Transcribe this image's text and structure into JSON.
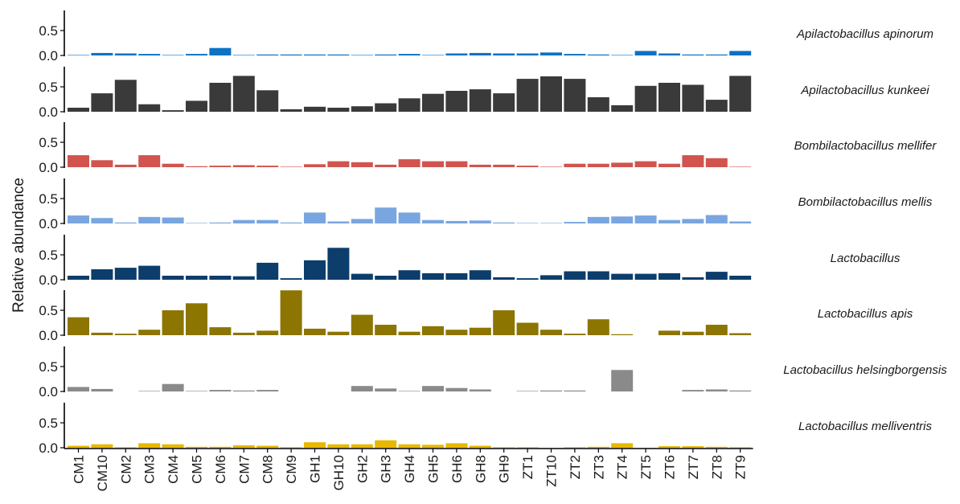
{
  "chart_data": {
    "type": "bar",
    "ylabel": "Relative abundance",
    "xlabel": "",
    "ylim": [
      0,
      0.95
    ],
    "yticks": [
      0.0,
      0.5
    ],
    "ytick_labels": [
      "0.0",
      "0.5"
    ],
    "categories": [
      "CM1",
      "CM10",
      "CM2",
      "CM3",
      "CM4",
      "CM5",
      "CM6",
      "CM7",
      "CM8",
      "CM9",
      "GH1",
      "GH10",
      "GH2",
      "GH3",
      "GH4",
      "GH5",
      "GH6",
      "GH8",
      "GH9",
      "ZT1",
      "ZT10",
      "ZT2",
      "ZT3",
      "ZT4",
      "ZT5",
      "ZT6",
      "ZT7",
      "ZT8",
      "ZT9"
    ],
    "series": [
      {
        "name": "Apilactobacillus apinorum",
        "color": "#0b72c4",
        "values": [
          0.01,
          0.05,
          0.04,
          0.03,
          0.01,
          0.03,
          0.15,
          0.01,
          0.02,
          0.02,
          0.02,
          0.02,
          0.01,
          0.02,
          0.03,
          0.01,
          0.04,
          0.05,
          0.04,
          0.04,
          0.06,
          0.03,
          0.02,
          0.01,
          0.09,
          0.04,
          0.02,
          0.02,
          0.09
        ]
      },
      {
        "name": "Apilactobacillus kunkeei",
        "color": "#3a3a3a",
        "values": [
          0.08,
          0.37,
          0.64,
          0.15,
          0.03,
          0.22,
          0.58,
          0.72,
          0.43,
          0.05,
          0.1,
          0.08,
          0.11,
          0.17,
          0.27,
          0.36,
          0.42,
          0.45,
          0.37,
          0.66,
          0.71,
          0.66,
          0.29,
          0.13,
          0.52,
          0.58,
          0.54,
          0.24,
          0.72
        ]
      },
      {
        "name": "Bombilactobacillus mellifer",
        "color": "#d1544e",
        "values": [
          0.24,
          0.14,
          0.05,
          0.24,
          0.07,
          0.02,
          0.03,
          0.04,
          0.03,
          0.01,
          0.06,
          0.12,
          0.1,
          0.05,
          0.16,
          0.12,
          0.12,
          0.05,
          0.05,
          0.03,
          0.01,
          0.07,
          0.07,
          0.09,
          0.12,
          0.07,
          0.24,
          0.18,
          0.01
        ]
      },
      {
        "name": "Bombilactobacillus mellis",
        "color": "#7aa6e0",
        "values": [
          0.16,
          0.11,
          0.02,
          0.13,
          0.12,
          0.01,
          0.02,
          0.07,
          0.07,
          0.02,
          0.22,
          0.04,
          0.09,
          0.32,
          0.22,
          0.07,
          0.05,
          0.06,
          0.02,
          0.01,
          0.01,
          0.03,
          0.13,
          0.14,
          0.16,
          0.07,
          0.09,
          0.17,
          0.04
        ]
      },
      {
        "name": "Lactobacillus",
        "color": "#0c3d6b",
        "values": [
          0.08,
          0.21,
          0.24,
          0.28,
          0.08,
          0.08,
          0.08,
          0.07,
          0.34,
          0.03,
          0.39,
          0.64,
          0.12,
          0.08,
          0.19,
          0.13,
          0.13,
          0.19,
          0.05,
          0.03,
          0.09,
          0.17,
          0.17,
          0.12,
          0.12,
          0.13,
          0.05,
          0.16,
          0.08
        ]
      },
      {
        "name": "Lactobacillus apis",
        "color": "#8c7500",
        "values": [
          0.36,
          0.05,
          0.03,
          0.11,
          0.5,
          0.64,
          0.16,
          0.05,
          0.09,
          0.9,
          0.13,
          0.07,
          0.41,
          0.21,
          0.07,
          0.18,
          0.11,
          0.15,
          0.5,
          0.25,
          0.11,
          0.03,
          0.32,
          0.02,
          0.0,
          0.09,
          0.07,
          0.21,
          0.04
        ]
      },
      {
        "name": "Lactobacillus helsingborgensis",
        "color": "#8a8a8a",
        "values": [
          0.09,
          0.05,
          0.0,
          0.01,
          0.15,
          0.01,
          0.03,
          0.02,
          0.03,
          0.0,
          0.0,
          0.0,
          0.11,
          0.06,
          0.01,
          0.11,
          0.07,
          0.04,
          0.0,
          0.01,
          0.02,
          0.02,
          0.0,
          0.43,
          0.0,
          0.0,
          0.03,
          0.04,
          0.02
        ]
      },
      {
        "name": "Lactobacillus melliventris",
        "color": "#e8b800",
        "values": [
          0.04,
          0.07,
          0.01,
          0.09,
          0.07,
          0.02,
          0.02,
          0.05,
          0.04,
          0.01,
          0.11,
          0.07,
          0.07,
          0.15,
          0.07,
          0.06,
          0.09,
          0.04,
          0.01,
          0.01,
          0.0,
          0.01,
          0.02,
          0.09,
          0.0,
          0.03,
          0.03,
          0.02,
          0.01
        ]
      }
    ]
  }
}
